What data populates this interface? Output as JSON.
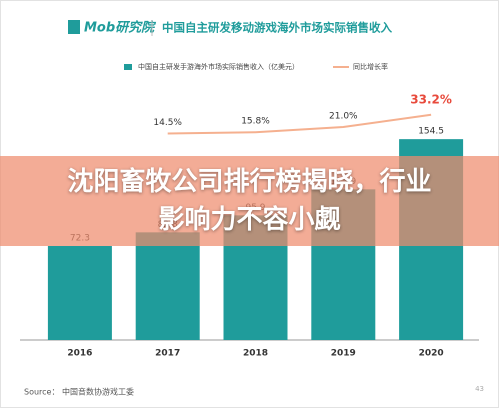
{
  "logo": "Mob研究院",
  "chart_data": {
    "type": "bar",
    "title": "中国自主研发移动游戏海外市场实际销售收入",
    "categories": [
      "2016",
      "2017",
      "2018",
      "2019",
      "2020"
    ],
    "series": [
      {
        "name": "中国自主研发手游海外市场实际销售收入（亿美元）",
        "type": "bar",
        "color": "#1f9c9b",
        "values": [
          72.3,
          82.8,
          95.9,
          115.9,
          154.5
        ]
      },
      {
        "name": "同比增长率",
        "type": "line",
        "axis": "y2",
        "color": "#f5b08f",
        "highlight_color": "#e84a3c",
        "values": [
          null,
          14.5,
          15.8,
          21.0,
          33.2
        ],
        "value_labels": [
          null,
          "14.5%",
          "15.8%",
          "21.0%",
          "33.2%"
        ]
      }
    ]
  },
  "source": "Source： 中国音数协游戏工委",
  "page_number": "43",
  "banner": "沈阳畜牧公司排行榜揭晓，行业影响力不容小觑"
}
